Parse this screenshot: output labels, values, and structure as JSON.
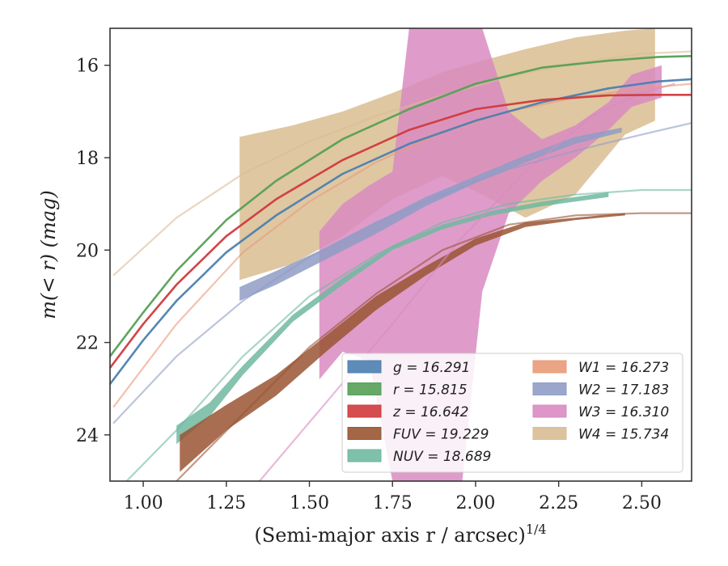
{
  "chart_data": {
    "type": "line",
    "xlabel": "(Semi-major axis r / arcsec)",
    "xlabel_sup": "1/4",
    "ylabel": "m(< r) (mag)",
    "xlim": [
      0.9,
      2.65
    ],
    "ylim": [
      25.0,
      15.2
    ],
    "y_inverted": true,
    "xticks": [
      1.0,
      1.25,
      1.5,
      1.75,
      2.0,
      2.25,
      2.5
    ],
    "xtick_labels": [
      "1.00",
      "1.25",
      "1.50",
      "1.75",
      "2.00",
      "2.25",
      "2.50"
    ],
    "yticks": [
      16,
      18,
      20,
      22,
      24
    ],
    "ytick_labels": [
      "16",
      "18",
      "20",
      "22",
      "24"
    ],
    "grid": false,
    "legend": {
      "placement": "lower-right",
      "columns": 2,
      "entries": [
        {
          "band": "g",
          "label": "g = 16.291",
          "color": "#4c7fb0"
        },
        {
          "band": "r",
          "label": "r = 15.815",
          "color": "#55a055"
        },
        {
          "band": "z",
          "label": "z = 16.642",
          "color": "#d03a3c"
        },
        {
          "band": "FUV",
          "label": "FUV = 19.229",
          "color": "#9a5533"
        },
        {
          "band": "NUV",
          "label": "NUV = 18.689",
          "color": "#70b9a0"
        },
        {
          "band": "W1",
          "label": "W1 = 16.273",
          "color": "#e99a78"
        },
        {
          "band": "W2",
          "label": "W2 = 17.183",
          "color": "#8f9cc6"
        },
        {
          "band": "W3",
          "label": "W3 = 16.310",
          "color": "#d98bc1"
        },
        {
          "band": "W4",
          "label": "W4 = 15.734",
          "color": "#d9bd92"
        }
      ]
    },
    "series": [
      {
        "name": "W4",
        "color": "#d9bd92",
        "model": {
          "x": [
            0.91,
            1.1,
            1.3,
            1.5,
            1.7,
            1.9,
            2.1,
            2.3,
            2.5,
            2.65
          ],
          "y": [
            20.55,
            19.3,
            18.35,
            17.65,
            17.1,
            16.65,
            16.25,
            15.95,
            15.75,
            15.7
          ]
        },
        "band_x": [
          1.29,
          1.45,
          1.6,
          1.75,
          1.9,
          2.02,
          2.15,
          2.3,
          2.45,
          2.54
        ],
        "band_upper": [
          17.55,
          17.3,
          17.0,
          16.6,
          16.15,
          15.9,
          15.65,
          15.4,
          15.25,
          15.2
        ],
        "band_lower": [
          20.65,
          20.3,
          19.7,
          18.9,
          18.4,
          18.8,
          19.3,
          18.8,
          17.5,
          17.2
        ]
      },
      {
        "name": "W3",
        "color": "#d98bc1",
        "model": {
          "x": [
            1.35,
            1.55,
            1.75,
            1.95,
            2.15,
            2.35,
            2.5,
            2.6
          ],
          "y": [
            25.0,
            23.3,
            21.6,
            19.8,
            18.3,
            17.1,
            16.6,
            16.4
          ]
        },
        "band_x": [
          1.53,
          1.6,
          1.68,
          1.75,
          1.8,
          1.88,
          1.96,
          2.02,
          2.1,
          2.2,
          2.3,
          2.4,
          2.47,
          2.56
        ],
        "band_upper": [
          19.6,
          19.0,
          18.6,
          18.3,
          15.2,
          15.2,
          15.2,
          15.2,
          17.0,
          17.6,
          17.3,
          16.8,
          16.2,
          16.0
        ],
        "band_lower": [
          22.8,
          22.2,
          22.4,
          25.0,
          25.0,
          25.0,
          25.0,
          20.9,
          19.2,
          18.5,
          18.0,
          17.4,
          16.9,
          16.7
        ]
      },
      {
        "name": "W2",
        "color": "#8f9cc6",
        "model": {
          "x": [
            0.91,
            1.1,
            1.3,
            1.5,
            1.7,
            1.9,
            2.1,
            2.3,
            2.5,
            2.65
          ],
          "y": [
            23.75,
            22.3,
            21.1,
            20.15,
            19.4,
            18.8,
            18.25,
            17.85,
            17.5,
            17.25
          ]
        },
        "band_x": [
          1.29,
          1.4,
          1.55,
          1.7,
          1.85,
          2.0,
          2.15,
          2.3,
          2.44
        ],
        "band_upper": [
          20.8,
          20.45,
          19.95,
          19.4,
          18.85,
          18.4,
          17.95,
          17.55,
          17.35
        ],
        "band_lower": [
          21.1,
          20.75,
          20.2,
          19.65,
          19.05,
          18.55,
          18.1,
          17.7,
          17.45
        ]
      },
      {
        "name": "W1",
        "color": "#e99a78",
        "model": {
          "x": [
            0.91,
            1.1,
            1.3,
            1.5,
            1.7,
            1.9,
            2.1,
            2.3,
            2.5,
            2.65
          ],
          "y": [
            23.4,
            21.6,
            20.05,
            18.95,
            18.1,
            17.45,
            17.0,
            16.7,
            16.5,
            16.4
          ]
        },
        "band_x": [],
        "band_upper": [],
        "band_lower": []
      },
      {
        "name": "NUV",
        "color": "#70b9a0",
        "model": {
          "x": [
            0.95,
            1.1,
            1.3,
            1.5,
            1.7,
            1.9,
            2.1,
            2.3,
            2.5,
            2.65
          ],
          "y": [
            25.0,
            23.9,
            22.3,
            21.0,
            20.1,
            19.4,
            19.0,
            18.8,
            18.7,
            18.7
          ]
        },
        "band_x": [
          1.1,
          1.2,
          1.3,
          1.45,
          1.6,
          1.75,
          1.9,
          2.05,
          2.2,
          2.4
        ],
        "band_upper": [
          23.8,
          23.3,
          22.5,
          21.4,
          20.6,
          19.9,
          19.45,
          19.15,
          18.95,
          18.75
        ],
        "band_lower": [
          24.2,
          23.6,
          22.7,
          21.55,
          20.75,
          20.0,
          19.55,
          19.25,
          19.05,
          18.85
        ]
      },
      {
        "name": "FUV",
        "color": "#9a5533",
        "model": {
          "x": [
            1.1,
            1.3,
            1.5,
            1.7,
            1.9,
            2.1,
            2.3,
            2.5,
            2.65
          ],
          "y": [
            25.0,
            23.55,
            22.1,
            20.95,
            20.0,
            19.45,
            19.25,
            19.2,
            19.2
          ]
        },
        "band_x": [
          1.11,
          1.25,
          1.4,
          1.55,
          1.7,
          1.85,
          2.0,
          2.15,
          2.3,
          2.45
        ],
        "band_upper": [
          24.0,
          23.35,
          22.7,
          21.85,
          21.0,
          20.35,
          19.75,
          19.4,
          19.3,
          19.2
        ],
        "band_lower": [
          24.8,
          23.9,
          23.15,
          22.2,
          21.3,
          20.55,
          19.9,
          19.5,
          19.35,
          19.25
        ]
      },
      {
        "name": "g",
        "color": "#4c7fb0",
        "model": {
          "x": [
            0.9,
            1.0,
            1.1,
            1.25,
            1.4,
            1.6,
            1.8,
            2.0,
            2.2,
            2.4,
            2.55,
            2.65
          ],
          "y": [
            22.9,
            21.95,
            21.1,
            20.05,
            19.25,
            18.35,
            17.7,
            17.2,
            16.8,
            16.5,
            16.35,
            16.3
          ]
        },
        "band_x": [],
        "band_upper": [],
        "band_lower": []
      },
      {
        "name": "z",
        "color": "#d03a3c",
        "model": {
          "x": [
            0.9,
            1.0,
            1.1,
            1.25,
            1.4,
            1.6,
            1.8,
            2.0,
            2.2,
            2.4,
            2.55,
            2.65
          ],
          "y": [
            22.55,
            21.6,
            20.75,
            19.7,
            18.9,
            18.05,
            17.4,
            16.95,
            16.75,
            16.65,
            16.64,
            16.64
          ]
        },
        "band_x": [],
        "band_upper": [],
        "band_lower": []
      },
      {
        "name": "r",
        "color": "#55a055",
        "model": {
          "x": [
            0.9,
            1.0,
            1.1,
            1.25,
            1.4,
            1.6,
            1.8,
            2.0,
            2.2,
            2.4,
            2.55,
            2.65
          ],
          "y": [
            22.3,
            21.35,
            20.45,
            19.35,
            18.5,
            17.6,
            16.95,
            16.4,
            16.05,
            15.9,
            15.82,
            15.8
          ]
        },
        "band_x": [],
        "band_upper": [],
        "band_lower": []
      }
    ]
  }
}
